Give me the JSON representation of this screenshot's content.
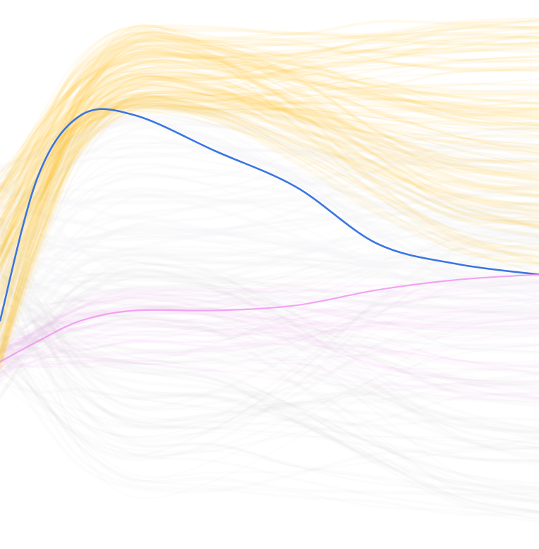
{
  "chart_data": {
    "type": "line",
    "x": [
      0,
      0.07,
      0.15,
      0.25,
      0.4,
      0.55,
      0.7,
      0.85,
      1.0
    ],
    "grid": false,
    "legend": "none",
    "xlim": [
      0,
      1
    ],
    "ylim": [
      0,
      1
    ],
    "bundles": [
      {
        "group": "gray",
        "color": "#dcdcdc",
        "count": 90,
        "opacity": 0.09,
        "start": [
          0.25,
          0.62
        ],
        "end": [
          0.02,
          0.62
        ],
        "peak_mid": [
          0.03,
          0.55
        ]
      },
      {
        "group": "pink",
        "color": "#f0a8f0",
        "count": 45,
        "opacity": 0.06,
        "start": [
          0.3,
          0.38
        ],
        "end": [
          0.25,
          0.5
        ],
        "peak_mid": [
          0.32,
          0.48
        ]
      },
      {
        "group": "white",
        "color": "#f6f4f8",
        "count": 60,
        "opacity": 0.3,
        "start": [
          0.35,
          0.72
        ],
        "end": [
          0.42,
          0.82
        ],
        "peak_mid": [
          0.45,
          0.85
        ]
      },
      {
        "group": "orange",
        "color": "#ffbf1a",
        "count": 110,
        "opacity": 0.08,
        "start": [
          0.3,
          0.7
        ],
        "end": [
          0.5,
          1.0
        ],
        "peak_mid": [
          0.82,
          0.98
        ]
      }
    ],
    "series": [
      {
        "color": "#2f6fe0",
        "values": [
          0.41,
          0.69,
          0.81,
          0.81,
          0.74,
          0.67,
          0.56,
          0.52,
          0.5
        ]
      },
      {
        "color": "#f08ef0",
        "values": [
          0.33,
          0.37,
          0.41,
          0.43,
          0.43,
          0.44,
          0.47,
          0.49,
          0.5
        ]
      }
    ]
  }
}
